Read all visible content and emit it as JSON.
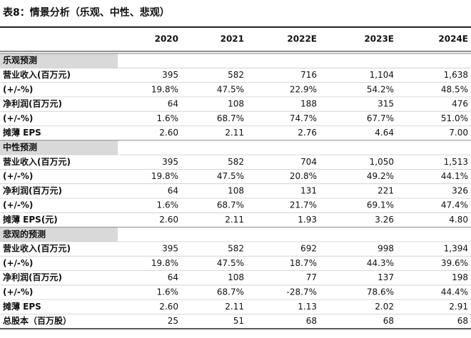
{
  "title": "表8：情景分析（乐观、中性、悲观）",
  "table": {
    "columns": [
      "2020",
      "2021",
      "2022E",
      "2023E",
      "2024E"
    ],
    "sections": [
      {
        "title": "乐观预测",
        "rows": [
          {
            "label": "营业收入(百万元)",
            "cells": [
              "395",
              "582",
              "716",
              "1,104",
              "1,638"
            ]
          },
          {
            "label": "(+/-%)",
            "cells": [
              "19.8%",
              "47.5%",
              "22.9%",
              "54.2%",
              "48.5%"
            ]
          },
          {
            "label": "净利润(百万元)",
            "cells": [
              "64",
              "108",
              "188",
              "315",
              "476"
            ]
          },
          {
            "label": "(+/-%)",
            "cells": [
              "1.6%",
              "68.7%",
              "74.7%",
              "67.7%",
              "51.0%"
            ]
          },
          {
            "label": "摊薄 EPS",
            "cells": [
              "2.60",
              "2.11",
              "2.76",
              "4.64",
              "7.00"
            ]
          }
        ]
      },
      {
        "title": "中性预测",
        "rows": [
          {
            "label": "营业收入(百万元)",
            "cells": [
              "395",
              "582",
              "704",
              "1,050",
              "1,513"
            ]
          },
          {
            "label": "(+/-%)",
            "cells": [
              "19.8%",
              "47.5%",
              "20.8%",
              "49.2%",
              "44.1%"
            ]
          },
          {
            "label": "净利润(百万元)",
            "cells": [
              "64",
              "108",
              "131",
              "221",
              "326"
            ]
          },
          {
            "label": "(+/-%)",
            "cells": [
              "1.6%",
              "68.7%",
              "21.7%",
              "69.1%",
              "47.4%"
            ]
          },
          {
            "label": "摊薄 EPS(元)",
            "cells": [
              "2.60",
              "2.11",
              "1.93",
              "3.26",
              "4.80"
            ]
          }
        ]
      },
      {
        "title": "悲观的预测",
        "rows": [
          {
            "label": "营业收入(百万元)",
            "cells": [
              "395",
              "582",
              "692",
              "998",
              "1,394"
            ]
          },
          {
            "label": "(+/-%)",
            "cells": [
              "19.8%",
              "47.5%",
              "18.7%",
              "44.3%",
              "39.6%"
            ]
          },
          {
            "label": "净利润(百万元)",
            "cells": [
              "64",
              "108",
              "77",
              "137",
              "198"
            ]
          },
          {
            "label": "(+/-%)",
            "cells": [
              "1.6%",
              "68.7%",
              "-28.7%",
              "78.6%",
              "44.4%"
            ]
          },
          {
            "label": "摊薄 EPS",
            "cells": [
              "2.60",
              "2.11",
              "1.13",
              "2.02",
              "2.91"
            ]
          }
        ]
      }
    ],
    "total": {
      "label": "总股本（百万股）",
      "cells": [
        "25",
        "51",
        "68",
        "68",
        "68"
      ]
    }
  }
}
